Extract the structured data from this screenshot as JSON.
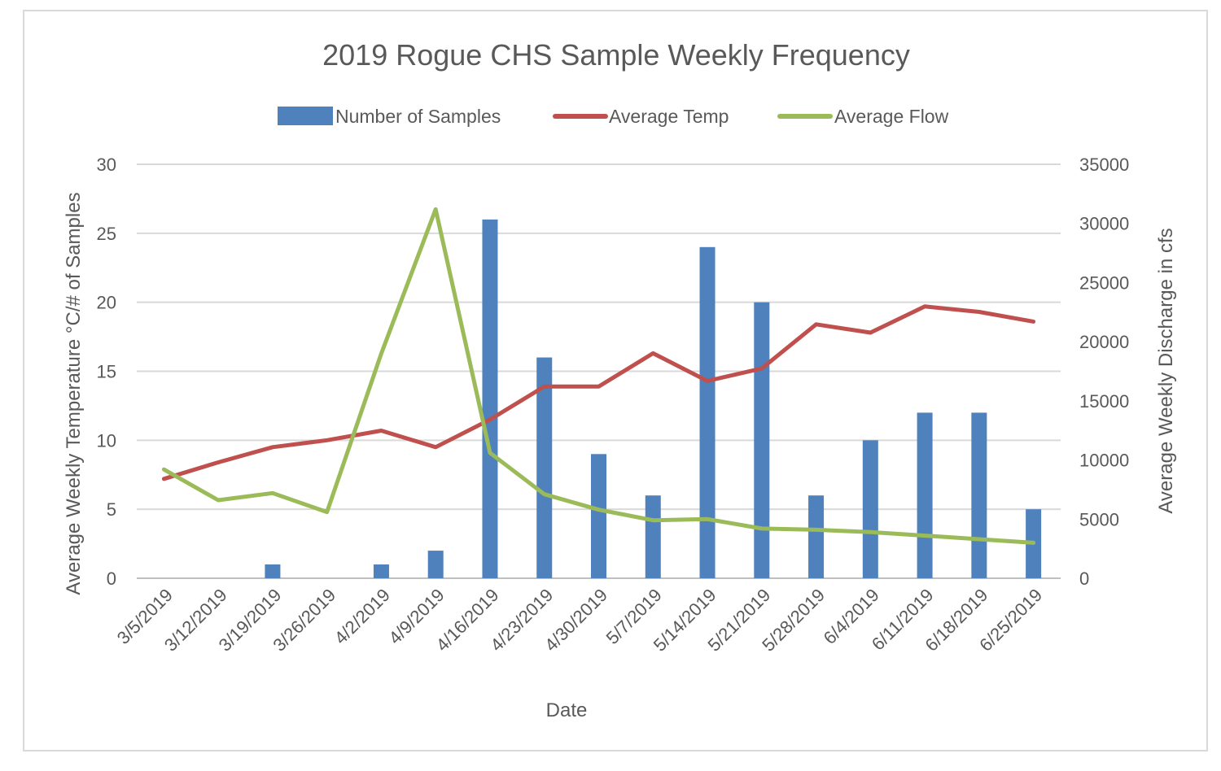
{
  "chart_data": {
    "type": "bar",
    "title": "2019 Rogue CHS Sample Weekly Frequency",
    "xlabel": "Date",
    "ylabel": "Average Weekly Temperature °C/# of Samples",
    "y2label": "Average Weekly Discharge in cfs",
    "categories": [
      "3/5/2019",
      "3/12/2019",
      "3/19/2019",
      "3/26/2019",
      "4/2/2019",
      "4/9/2019",
      "4/16/2019",
      "4/23/2019",
      "4/30/2019",
      "5/7/2019",
      "5/14/2019",
      "5/21/2019",
      "5/28/2019",
      "6/4/2019",
      "6/11/2019",
      "6/18/2019",
      "6/25/2019"
    ],
    "ylim": [
      0,
      30
    ],
    "y2lim": [
      0,
      35000
    ],
    "yticks": [
      "0",
      "5",
      "10",
      "15",
      "20",
      "25",
      "30"
    ],
    "y2ticks": [
      "0",
      "5000",
      "10000",
      "15000",
      "20000",
      "25000",
      "30000",
      "35000"
    ],
    "grid": true,
    "legend_position": "top",
    "series": [
      {
        "name": "Number of Samples",
        "kind": "bar",
        "axis": "left",
        "color": "#4f81bd",
        "values": [
          0,
          0,
          1,
          0,
          1,
          2,
          26,
          16,
          9,
          6,
          24,
          20,
          6,
          10,
          12,
          12,
          5
        ]
      },
      {
        "name": "Average Temp",
        "kind": "line",
        "axis": "left",
        "color": "#c0504d",
        "values": [
          7.2,
          8.4,
          9.5,
          10.0,
          10.7,
          9.5,
          11.5,
          13.9,
          13.9,
          16.3,
          14.3,
          15.2,
          18.4,
          17.8,
          19.7,
          19.3,
          18.6
        ]
      },
      {
        "name": "Average Flow",
        "kind": "line",
        "axis": "right",
        "color": "#9bbb59",
        "values": [
          9200,
          6600,
          7200,
          5600,
          19000,
          31200,
          10600,
          7100,
          5800,
          4900,
          5000,
          4200,
          4100,
          3900,
          3600,
          3300,
          3000
        ]
      }
    ]
  }
}
